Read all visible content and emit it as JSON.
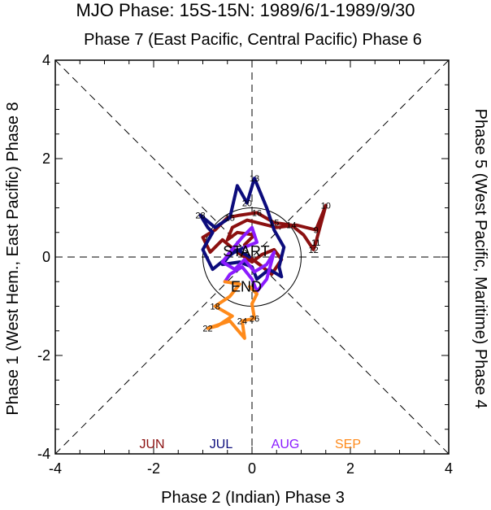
{
  "chart_data": {
    "type": "line",
    "title": "MJO Phase: 15S-15N: 1989/6/1-1989/9/30",
    "top_label": "Phase 7 (East Pacific, Central Pacific) Phase 6",
    "bottom_label": "Phase 2 (Indian) Phase 3",
    "left_label": "Phase 1 (West Hem., East Pacific) Phase 8",
    "right_label": "Phase 5 (West Pacific, Maritime) Phase 4",
    "xlim": [
      -4,
      4
    ],
    "ylim": [
      -4,
      4
    ],
    "x_ticks": [
      "-4",
      "-2",
      "0",
      "2",
      "4"
    ],
    "y_ticks": [
      "-4",
      "-2",
      "0",
      "2",
      "4"
    ],
    "start_label": "START",
    "end_label": "END",
    "legend_placement": "bottom-inside",
    "series": [
      {
        "name": "JUN",
        "color": "#8b1010",
        "points": [
          {
            "x": -0.15,
            "y": 0.25,
            "label": ""
          },
          {
            "x": 0.05,
            "y": 0.45,
            "label": ""
          },
          {
            "x": -0.3,
            "y": 0.5,
            "label": ""
          },
          {
            "x": -0.5,
            "y": 0.35,
            "label": ""
          },
          {
            "x": -0.4,
            "y": 0.6,
            "label": ""
          },
          {
            "x": -0.1,
            "y": 0.75,
            "label": ""
          },
          {
            "x": 0.5,
            "y": 0.6,
            "label": ""
          },
          {
            "x": 0.9,
            "y": 0.65,
            "label": ""
          },
          {
            "x": 1.3,
            "y": 0.55,
            "label": "9"
          },
          {
            "x": 1.5,
            "y": 1.05,
            "label": "10"
          },
          {
            "x": 1.3,
            "y": 0.3,
            "label": "11"
          },
          {
            "x": 1.25,
            "y": 0.15,
            "label": "12"
          },
          {
            "x": 1.05,
            "y": 0.45,
            "label": ""
          },
          {
            "x": 0.8,
            "y": 0.65,
            "label": "14"
          },
          {
            "x": 0.45,
            "y": 0.7,
            "label": "15"
          },
          {
            "x": 0.1,
            "y": 0.9,
            "label": "16"
          },
          {
            "x": -0.25,
            "y": 0.85,
            "label": ""
          },
          {
            "x": -0.5,
            "y": 0.8,
            "label": ""
          },
          {
            "x": -0.75,
            "y": 0.55,
            "label": ""
          },
          {
            "x": -1.0,
            "y": 0.4,
            "label": ""
          },
          {
            "x": -0.85,
            "y": 0.1,
            "label": ""
          },
          {
            "x": -0.6,
            "y": 0.35,
            "label": ""
          },
          {
            "x": -0.3,
            "y": 0.1,
            "label": ""
          },
          {
            "x": 0.0,
            "y": -0.1,
            "label": ""
          },
          {
            "x": 0.2,
            "y": 0.05,
            "label": ""
          },
          {
            "x": 0.45,
            "y": 0.15,
            "label": ""
          },
          {
            "x": 0.6,
            "y": -0.05,
            "label": ""
          },
          {
            "x": 0.4,
            "y": -0.35,
            "label": ""
          },
          {
            "x": 0.15,
            "y": -0.15,
            "label": ""
          },
          {
            "x": -0.05,
            "y": 0.0,
            "label": ""
          }
        ]
      },
      {
        "name": "JUL",
        "color": "#0c0c7c",
        "points": [
          {
            "x": -0.05,
            "y": 0.0,
            "label": ""
          },
          {
            "x": -0.3,
            "y": 0.15,
            "label": ""
          },
          {
            "x": -0.55,
            "y": -0.05,
            "label": ""
          },
          {
            "x": -0.8,
            "y": -0.25,
            "label": ""
          },
          {
            "x": -1.0,
            "y": 0.15,
            "label": ""
          },
          {
            "x": -0.8,
            "y": 0.5,
            "label": ""
          },
          {
            "x": -0.9,
            "y": 0.6,
            "label": ""
          },
          {
            "x": -1.05,
            "y": 0.85,
            "label": "28"
          },
          {
            "x": -0.75,
            "y": 0.6,
            "label": ""
          },
          {
            "x": -0.45,
            "y": 0.8,
            "label": "15"
          },
          {
            "x": -0.3,
            "y": 1.45,
            "label": ""
          },
          {
            "x": -0.1,
            "y": 1.1,
            "label": "20"
          },
          {
            "x": 0.05,
            "y": 1.6,
            "label": "13"
          },
          {
            "x": 0.3,
            "y": 1.0,
            "label": ""
          },
          {
            "x": 0.45,
            "y": 0.55,
            "label": ""
          },
          {
            "x": 0.65,
            "y": 0.2,
            "label": ""
          },
          {
            "x": 0.55,
            "y": -0.2,
            "label": ""
          },
          {
            "x": 0.6,
            "y": -0.4,
            "label": ""
          },
          {
            "x": 0.35,
            "y": -0.25,
            "label": ""
          },
          {
            "x": 0.1,
            "y": -0.45,
            "label": ""
          },
          {
            "x": 0.0,
            "y": -0.2,
            "label": ""
          },
          {
            "x": -0.25,
            "y": -0.1,
            "label": ""
          },
          {
            "x": -0.6,
            "y": -0.15,
            "label": ""
          },
          {
            "x": -0.45,
            "y": 0.05,
            "label": ""
          },
          {
            "x": -0.15,
            "y": 0.2,
            "label": ""
          }
        ]
      },
      {
        "name": "AUG",
        "color": "#8a1bff",
        "points": [
          {
            "x": -0.15,
            "y": 0.2,
            "label": ""
          },
          {
            "x": 0.1,
            "y": 0.3,
            "label": ""
          },
          {
            "x": 0.0,
            "y": 0.6,
            "label": ""
          },
          {
            "x": -0.2,
            "y": 0.4,
            "label": ""
          },
          {
            "x": -0.45,
            "y": 0.1,
            "label": ""
          },
          {
            "x": -0.6,
            "y": -0.1,
            "label": ""
          },
          {
            "x": -0.35,
            "y": -0.25,
            "label": ""
          },
          {
            "x": -0.15,
            "y": -0.05,
            "label": ""
          },
          {
            "x": 0.05,
            "y": -0.3,
            "label": ""
          },
          {
            "x": 0.3,
            "y": -0.15,
            "label": ""
          },
          {
            "x": 0.45,
            "y": 0.1,
            "label": ""
          },
          {
            "x": 0.3,
            "y": -0.45,
            "label": ""
          },
          {
            "x": 0.1,
            "y": -0.7,
            "label": ""
          },
          {
            "x": 0.0,
            "y": -0.45,
            "label": ""
          },
          {
            "x": -0.2,
            "y": -0.2,
            "label": ""
          },
          {
            "x": -0.45,
            "y": -0.35,
            "label": ""
          },
          {
            "x": -0.55,
            "y": -0.5,
            "label": ""
          }
        ]
      },
      {
        "name": "SEP",
        "color": "#ff8a1a",
        "points": [
          {
            "x": -0.55,
            "y": -0.5,
            "label": ""
          },
          {
            "x": -0.25,
            "y": -0.55,
            "label": ""
          },
          {
            "x": -0.45,
            "y": -0.8,
            "label": ""
          },
          {
            "x": -0.75,
            "y": -1.0,
            "label": "18"
          },
          {
            "x": -0.4,
            "y": -1.2,
            "label": ""
          },
          {
            "x": -0.7,
            "y": -1.4,
            "label": ""
          },
          {
            "x": -0.9,
            "y": -1.45,
            "label": "22"
          },
          {
            "x": -0.45,
            "y": -1.3,
            "label": ""
          },
          {
            "x": -0.15,
            "y": -1.65,
            "label": ""
          },
          {
            "x": -0.2,
            "y": -1.3,
            "label": "24"
          },
          {
            "x": 0.05,
            "y": -1.25,
            "label": "26"
          },
          {
            "x": 0.0,
            "y": -0.95,
            "label": ""
          },
          {
            "x": 0.1,
            "y": -0.75,
            "label": ""
          },
          {
            "x": -0.05,
            "y": -0.6,
            "label": ""
          }
        ]
      }
    ]
  }
}
